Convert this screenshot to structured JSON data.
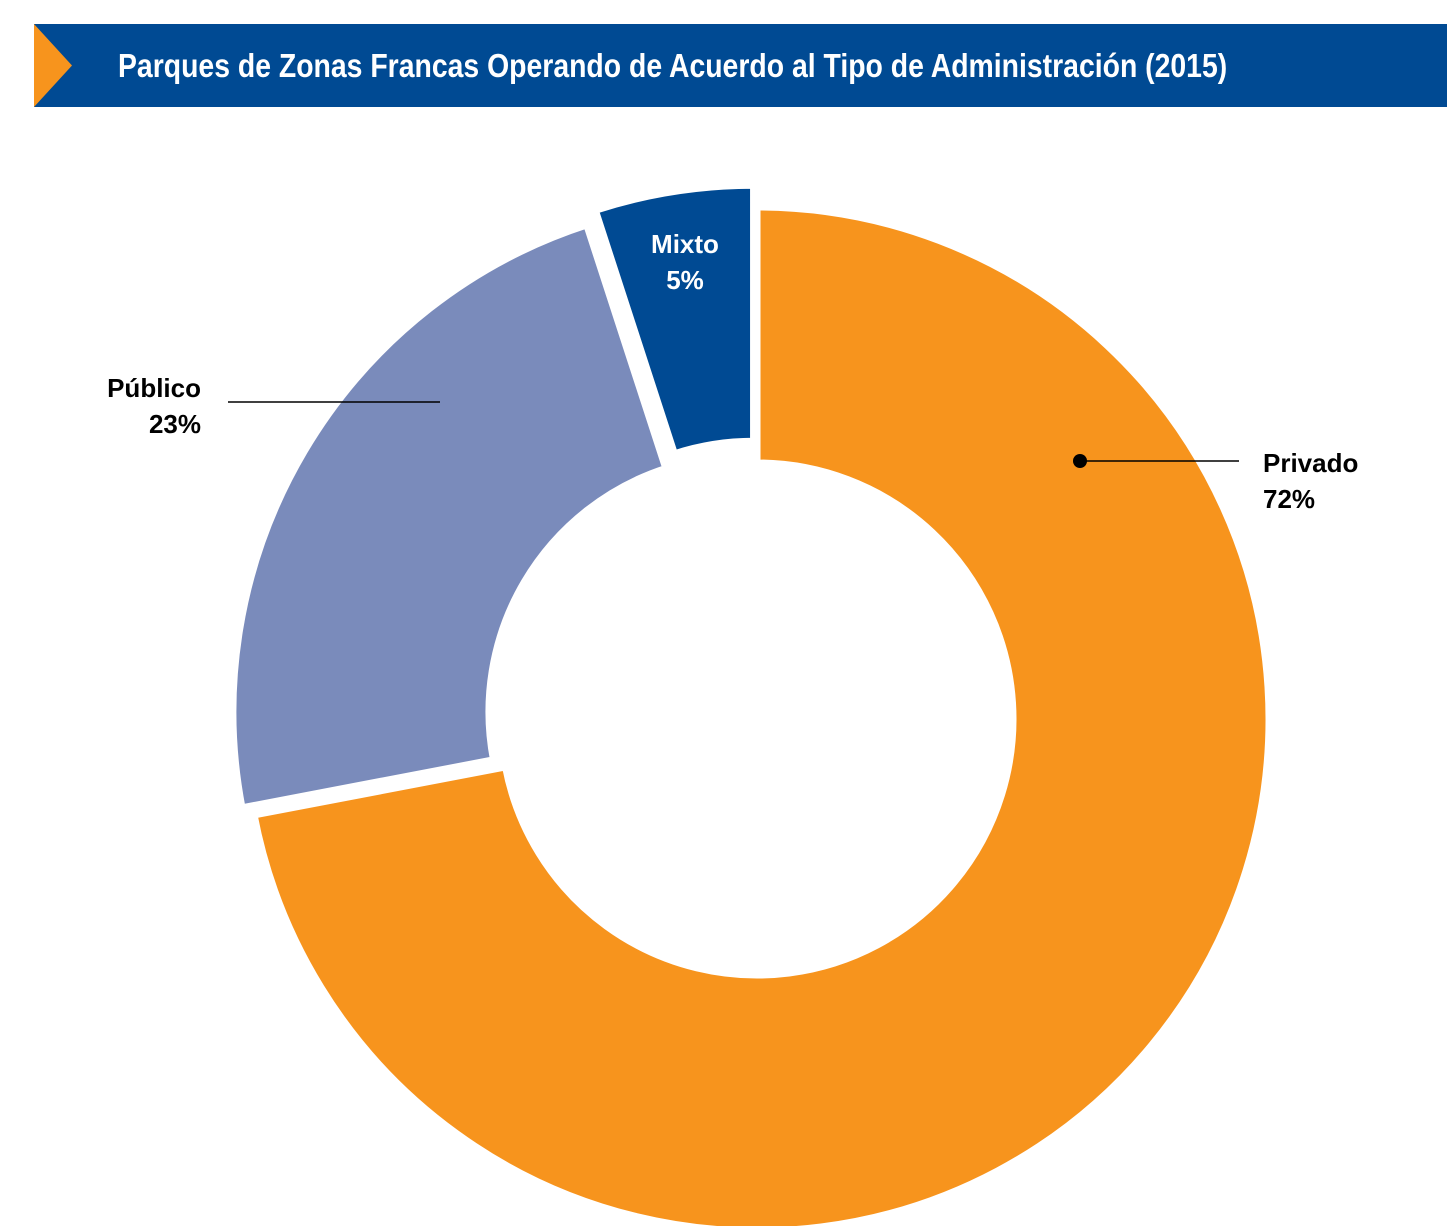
{
  "header": {
    "title": "Parques de Zonas Francas Operando de Acuerdo al Tipo de Administración (2015)"
  },
  "colors": {
    "header_bg": "#004a93",
    "header_arrow": "#f7941d",
    "header_text": "#ffffff",
    "label_text": "#000000"
  },
  "chart_data": {
    "type": "pie",
    "style": "donut",
    "title": "Parques de Zonas Francas Operando de Acuerdo al Tipo de Administración (2015)",
    "slices": [
      {
        "label": "Privado",
        "value": 72,
        "value_label": "72%",
        "color": "#f7941d"
      },
      {
        "label": "Público",
        "value": 23,
        "value_label": "23%",
        "color": "#7a8bbb"
      },
      {
        "label": "Mixto",
        "value": 5,
        "value_label": "5%",
        "color": "#004a93"
      }
    ]
  }
}
